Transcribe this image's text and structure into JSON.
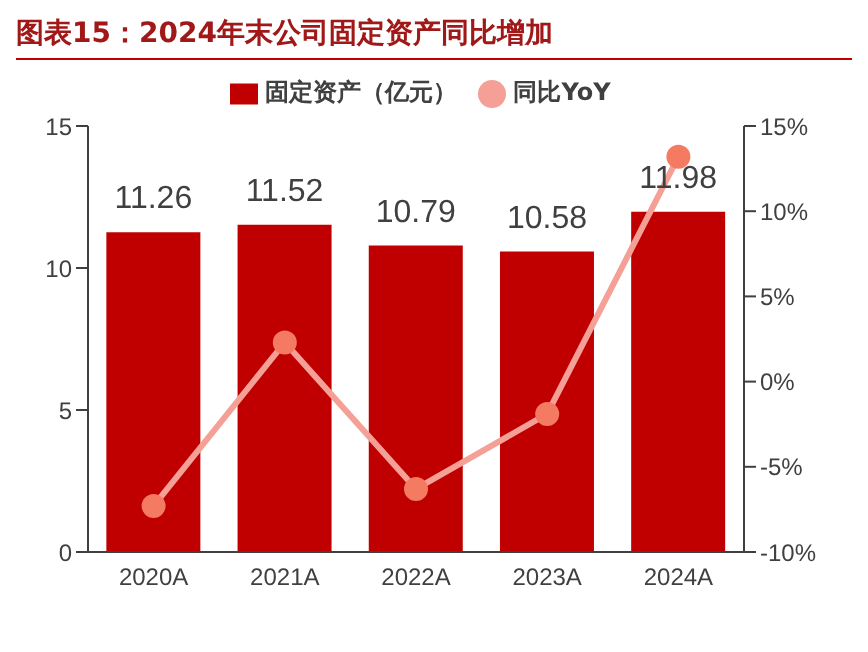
{
  "chart_data": {
    "type": "bar",
    "title": "图表15：2024年末公司固定资产同比增加",
    "categories": [
      "2020A",
      "2021A",
      "2022A",
      "2023A",
      "2024A"
    ],
    "series": [
      {
        "name": "固定资产（亿元）",
        "color": "#c00000",
        "values": [
          11.26,
          11.52,
          10.79,
          10.58,
          11.98
        ],
        "value_labels": [
          "11.26",
          "11.52",
          "10.79",
          "10.58",
          "11.98"
        ]
      },
      {
        "name": "同比YoY",
        "type": "line",
        "axis": "y2",
        "color": "#f4a096",
        "values": [
          -7.3,
          2.3,
          -6.3,
          -1.9,
          13.2
        ],
        "marker": "circle"
      }
    ],
    "ylim": [
      0,
      15
    ],
    "yticks": [
      0,
      5,
      10,
      15
    ],
    "y2lim": [
      -10,
      15
    ],
    "y2ticks": [
      {
        "value": -10,
        "label": "-10%"
      },
      {
        "value": -5,
        "label": "-5%"
      },
      {
        "value": 0,
        "label": "0%"
      },
      {
        "value": 5,
        "label": "5%"
      },
      {
        "value": 10,
        "label": "10%"
      },
      {
        "value": 15,
        "label": "15%"
      }
    ],
    "legend": "top",
    "grid": false
  }
}
